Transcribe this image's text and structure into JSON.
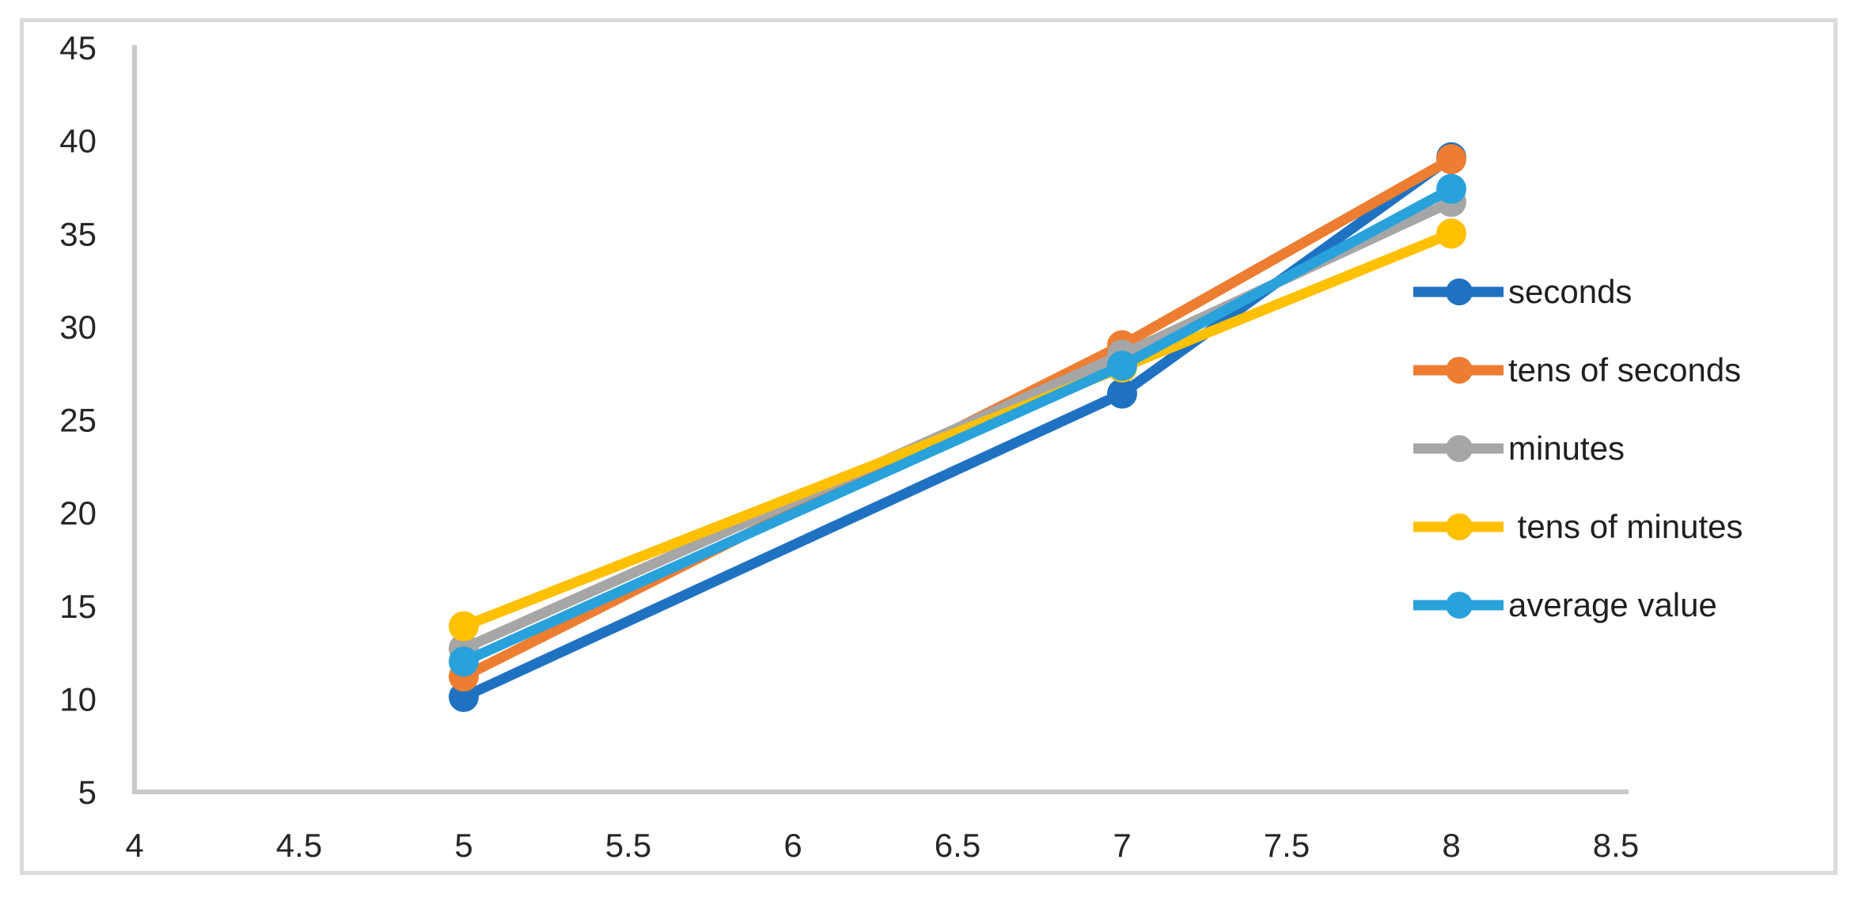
{
  "figure": {
    "background_color": "#ffffff",
    "frame_color": "#DBDBDB"
  },
  "chart_data": {
    "type": "line",
    "x": [
      5,
      7,
      8
    ],
    "series": [
      {
        "name": "seconds",
        "color": "#1F72C2",
        "values": [
          10.1,
          26.4,
          39.1
        ]
      },
      {
        "name": "tens of seconds",
        "color": "#ED7D31",
        "values": [
          11.2,
          29.0,
          39.0
        ]
      },
      {
        "name": "minutes",
        "color": "#A6A6A6",
        "values": [
          12.7,
          28.5,
          36.7
        ]
      },
      {
        "name": " tens of minutes",
        "color": "#FFC000",
        "values": [
          13.9,
          27.8,
          35.0
        ]
      },
      {
        "name": "average value",
        "color": "#29A2DC",
        "values": [
          12.0,
          27.9,
          37.4
        ]
      }
    ],
    "title": "",
    "xlabel": "",
    "ylabel": "",
    "x_ticks": [
      4,
      4.5,
      5,
      5.5,
      6,
      6.5,
      7,
      7.5,
      8,
      8.5
    ],
    "y_ticks": [
      5,
      10,
      15,
      20,
      25,
      30,
      35,
      40,
      45
    ],
    "xlim": [
      4,
      8.5
    ],
    "ylim": [
      5,
      45
    ],
    "grid": false,
    "legend_position": "right-inside",
    "axis_color": "#C9C9C9",
    "tick_text_color": "#262626",
    "marker_style": "circle"
  }
}
